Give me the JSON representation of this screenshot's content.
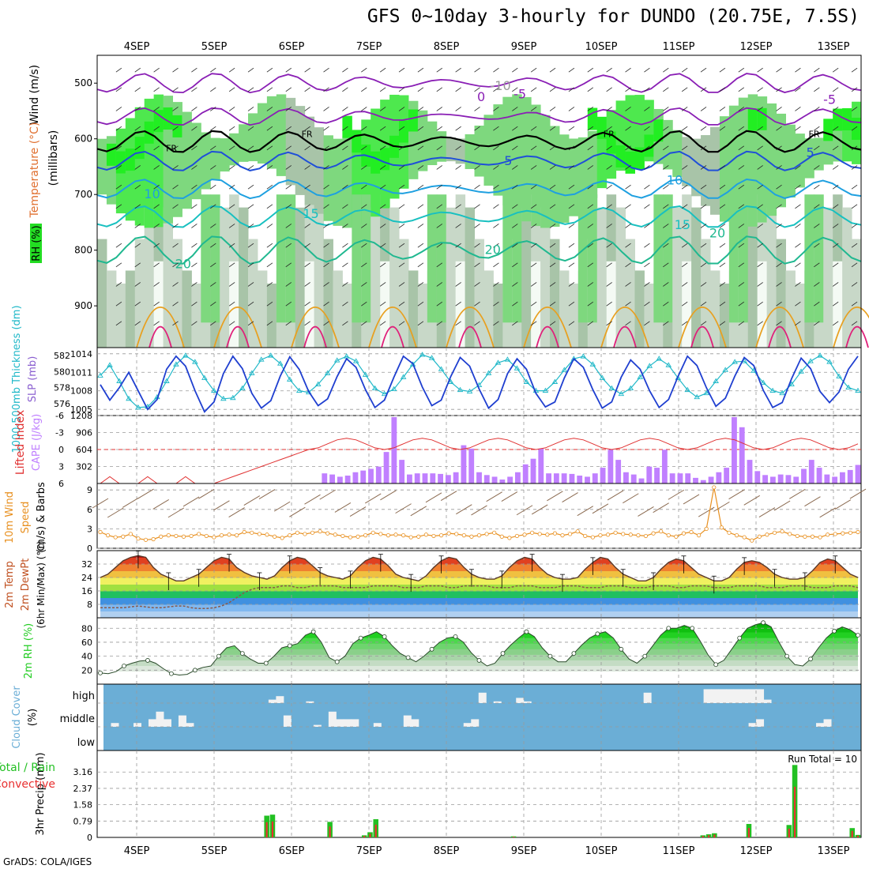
{
  "title": "GFS 0~10day 3-hourly for DUNDO (20.75E, 7.5S)",
  "footer": "GrADS: COLA/IGES",
  "days": [
    "4SEP",
    "5SEP",
    "6SEP",
    "7SEP",
    "8SEP",
    "9SEP",
    "10SEP",
    "11SEP",
    "12SEP",
    "13SEP"
  ],
  "colors": {
    "temp": "#e87020",
    "rh": "#22cc22",
    "cape": "#c080ff",
    "li": "#e03030",
    "wind": "#e89020",
    "slp": "#1f3fd0",
    "thk": "#20b8c8",
    "cloud": "#6baed6",
    "cloud_gap": "#ddd",
    "rain": "#22c022",
    "conv": "#e83030"
  },
  "chart_data": [
    {
      "id": "upper",
      "type": "heatmap",
      "title": "Temperature (°C) Wind (m/s) RH (%)",
      "ylabel": "(millibars)",
      "ylabel_rh": "RH (%)",
      "ylabel_wind": "Wind (m/s)",
      "ylabel_temp": "Temperature (°C)",
      "yticks": [
        500,
        600,
        700,
        800,
        900
      ],
      "ylim": [
        975,
        450
      ],
      "contour_labels": [
        {
          "text": "-5",
          "p": 520,
          "x": 4.95
        },
        {
          "text": "0",
          "p": 525,
          "x": 4.45
        },
        {
          "text": "-5",
          "p": 530,
          "x": 8.95
        },
        {
          "text": "FR",
          "p": 615,
          "x": 0.45
        },
        {
          "text": "FR",
          "p": 590,
          "x": 2.2
        },
        {
          "text": "FR",
          "p": 590,
          "x": 6.1
        },
        {
          "text": "FR",
          "p": 590,
          "x": 8.75
        },
        {
          "text": "5",
          "p": 640,
          "x": 4.8
        },
        {
          "text": "5",
          "p": 625,
          "x": 8.7
        },
        {
          "text": "-10",
          "p": 505,
          "x": 4.7
        },
        {
          "text": "10",
          "p": 700,
          "x": 0.2
        },
        {
          "text": "10",
          "p": 675,
          "x": 6.95
        },
        {
          "text": "15",
          "p": 735,
          "x": 2.25
        },
        {
          "text": "15",
          "p": 755,
          "x": 7.05
        },
        {
          "text": "20",
          "p": 825,
          "x": 0.6
        },
        {
          "text": "20",
          "p": 800,
          "x": 4.6
        },
        {
          "text": "20",
          "p": 770,
          "x": 7.5
        }
      ]
    },
    {
      "id": "slp",
      "type": "line",
      "ylabel": "SLP (mb)",
      "ylabel2": "1000-500mb Thickness (dm)",
      "yticks": [
        1005,
        1008,
        1011,
        1014
      ],
      "yticks2": [
        576,
        578,
        580,
        582
      ],
      "series": [
        {
          "name": "SLP",
          "values": [
            1009,
            1006.5,
            1008.5,
            1011,
            1008,
            1005,
            1006.6,
            1011.5,
            1013.6,
            1012,
            1008,
            1004.6,
            1006.2,
            1010.8,
            1013.6,
            1011.6,
            1007.6,
            1005.2,
            1006.4,
            1010.4,
            1013.5,
            1011.5,
            1007.9,
            1005.6,
            1006.7,
            1010.3,
            1013.2,
            1011.8,
            1008.2,
            1005.3,
            1006.5,
            1010.2,
            1013.6,
            1012.4,
            1008.6,
            1005.6,
            1006.5,
            1010.3,
            1013.4,
            1012.0,
            1008.3,
            1005.2,
            1006.6,
            1010.8,
            1013.2,
            1011.5,
            1007.6,
            1005.4,
            1006.2,
            1010.1,
            1013.2,
            1011.8,
            1008.2,
            1005.2,
            1006.2,
            1010.2,
            1013.0,
            1011.5,
            1008.0,
            1005.3,
            1006.6,
            1010.3,
            1013.6,
            1012.1,
            1008.5,
            1005.5,
            1006.8,
            1010.4,
            1013.4,
            1012.1,
            1008.1,
            1005.3,
            1006.1,
            1010.0,
            1013.3,
            1011.6,
            1007.9,
            1006.1,
            1007.8,
            1011.5,
            1013.6
          ]
        },
        {
          "name": "Thickness",
          "values": [
            579.5,
            580.8,
            578.8,
            576.6,
            575.5,
            575.6,
            576.8,
            578.8,
            580.9,
            582.0,
            581.2,
            579.2,
            577.6,
            576.6,
            576.7,
            577.9,
            579.8,
            581.5,
            582.0,
            581.0,
            579.0,
            577.6,
            577.4,
            578.4,
            579.8,
            581.4,
            581.9,
            581.3,
            579.6,
            577.9,
            577.2,
            577.8,
            579.3,
            580.9,
            582.1,
            581.7,
            580.3,
            578.7,
            577.7,
            577.5,
            578.3,
            579.8,
            581.1,
            581.5,
            580.4,
            578.7,
            577.6,
            577.6,
            578.7,
            580.2,
            581.6,
            581.9,
            580.9,
            579.2,
            577.9,
            577.2,
            577.9,
            579.3,
            580.7,
            581.6,
            580.8,
            579.2,
            577.7,
            576.8,
            577.3,
            578.8,
            580.2,
            581.2,
            581.3,
            580.1,
            578.6,
            577.6,
            577.3,
            578.4,
            580.0,
            581.3,
            582.0,
            581.2,
            579.4,
            578.0,
            577.6
          ]
        }
      ]
    },
    {
      "id": "cape",
      "type": "bar",
      "ylabel": "CAPE (J/kg)",
      "ylabel2": "Lifted Index",
      "yticks": [
        302,
        604,
        906,
        1208
      ],
      "yticks2": [
        6,
        3,
        0,
        -3,
        -6
      ],
      "cape": [
        0,
        0,
        0,
        0,
        0,
        0,
        0,
        0,
        0,
        0,
        0,
        0,
        0,
        0,
        0,
        0,
        0,
        0,
        0,
        0,
        0,
        0,
        0,
        0,
        0,
        0,
        0,
        0,
        0,
        180,
        160,
        120,
        140,
        200,
        230,
        260,
        300,
        560,
        1180,
        420,
        160,
        180,
        180,
        180,
        170,
        150,
        200,
        680,
        620,
        200,
        150,
        120,
        70,
        120,
        200,
        340,
        440,
        620,
        180,
        180,
        180,
        170,
        140,
        120,
        180,
        280,
        600,
        420,
        200,
        160,
        90,
        300,
        280,
        600,
        180,
        180,
        180,
        100,
        60,
        120,
        200,
        280,
        1180,
        1000,
        420,
        220,
        150,
        120,
        160,
        150,
        120,
        260,
        420,
        280,
        160,
        120,
        200,
        240,
        330
      ]
    },
    {
      "id": "wind",
      "type": "line",
      "ylabel": "10m Wind Speed (m/s) & Barbs",
      "yticks": [
        0,
        3,
        6,
        9
      ],
      "values": [
        2.5,
        2.0,
        1.7,
        1.8,
        2.2,
        1.5,
        1.3,
        1.4,
        1.8,
        2.0,
        1.9,
        1.8,
        1.9,
        2.2,
        1.9,
        1.7,
        2.0,
        2.1,
        2.0,
        2.5,
        2.4,
        2.2,
        2.1,
        1.8,
        1.6,
        2.0,
        2.4,
        2.2,
        2.4,
        2.6,
        2.3,
        2.1,
        1.9,
        1.7,
        1.8,
        2.0,
        2.4,
        2.2,
        2.0,
        2.1,
        2.0,
        1.7,
        1.8,
        2.1,
        1.9,
        2.0,
        2.3,
        2.2,
        2.0,
        1.8,
        2.0,
        2.2,
        2.4,
        1.8,
        1.6,
        1.9,
        2.1,
        2.4,
        2.2,
        2.1,
        2.3,
        2.0,
        2.2,
        2.6,
        1.9,
        1.7,
        2.0,
        2.1,
        2.4,
        2.2,
        2.1,
        2.0,
        1.9,
        2.3,
        2.6,
        2.0,
        1.8,
        2.3,
        2.5,
        2.0,
        3.0,
        9.4,
        3.2,
        2.4,
        2.0,
        1.7,
        1.2,
        1.8,
        2.1,
        2.4,
        2.6,
        2.2,
        1.9,
        1.8,
        1.8,
        1.7,
        2.1,
        2.2,
        2.3,
        2.4,
        2.5
      ]
    },
    {
      "id": "temp2m",
      "type": "area",
      "ylabel": "2m Temp / 2m DewPt (6hr Min/Max) (°C)",
      "yticks": [
        8,
        16,
        24,
        32
      ],
      "ylim": [
        0,
        40
      ],
      "temp": [
        24,
        26,
        30,
        34,
        36,
        37,
        36,
        30,
        26,
        24,
        22,
        22,
        24,
        26,
        30,
        34,
        36,
        35,
        30,
        27,
        25,
        24,
        23,
        25,
        30,
        34,
        36,
        35,
        31,
        27,
        25,
        24,
        23,
        25,
        30,
        34,
        36,
        35,
        31,
        26,
        24,
        23,
        22,
        25,
        30,
        34,
        36,
        35,
        30,
        26,
        24,
        23,
        23,
        25,
        30,
        34,
        36,
        35,
        30,
        26,
        24,
        23,
        23,
        24,
        29,
        33,
        36,
        35,
        30,
        26,
        24,
        22,
        22,
        24,
        29,
        33,
        35,
        34,
        30,
        26,
        24,
        22,
        22,
        24,
        29,
        33,
        34,
        33,
        30,
        26,
        24,
        23,
        23,
        24,
        28,
        33,
        35,
        34,
        30,
        26,
        24
      ],
      "dewpt": [
        6,
        6,
        6,
        6,
        6.5,
        7,
        6.5,
        6,
        6,
        6.5,
        7,
        7,
        6,
        5.5,
        5.5,
        6,
        7,
        9,
        12,
        15,
        17,
        18,
        18,
        18,
        19,
        19,
        18,
        18,
        19,
        19,
        19,
        19,
        18,
        18,
        18,
        18,
        19,
        19,
        19,
        19,
        18,
        18,
        18,
        19,
        19,
        19,
        18,
        18,
        19,
        19,
        19,
        19,
        18,
        18,
        18,
        19,
        19,
        19,
        18,
        18,
        18,
        19,
        19,
        19,
        18,
        18,
        18,
        19,
        19,
        19,
        18,
        18,
        18,
        19,
        19,
        19,
        18,
        18,
        19,
        19,
        19,
        18,
        18,
        18,
        19,
        19,
        19,
        19,
        18,
        18,
        18,
        19,
        19,
        19,
        18,
        18,
        18,
        19,
        19,
        19,
        18
      ]
    },
    {
      "id": "rh2m",
      "type": "area",
      "ylabel": "2m RH (%)",
      "yticks": [
        20,
        40,
        60,
        80
      ],
      "ylim": [
        0,
        95
      ],
      "values": [
        16,
        15,
        18,
        26,
        30,
        33,
        34,
        30,
        22,
        15,
        13,
        14,
        20,
        24,
        26,
        40,
        52,
        55,
        44,
        36,
        30,
        30,
        40,
        52,
        55,
        58,
        70,
        75,
        60,
        38,
        32,
        40,
        58,
        66,
        70,
        75,
        68,
        55,
        44,
        38,
        32,
        40,
        50,
        60,
        66,
        68,
        60,
        45,
        34,
        26,
        30,
        44,
        56,
        66,
        75,
        68,
        52,
        40,
        32,
        32,
        44,
        56,
        66,
        72,
        75,
        66,
        50,
        36,
        30,
        40,
        55,
        70,
        80,
        80,
        84,
        80,
        62,
        42,
        28,
        34,
        50,
        66,
        80,
        85,
        88,
        82,
        60,
        40,
        28,
        26,
        36,
        52,
        66,
        76,
        82,
        78,
        70
      ]
    },
    {
      "id": "cloud",
      "type": "bar",
      "ylabel": "Cloud Cover (%)",
      "layers": [
        "high",
        "middle",
        "low"
      ],
      "high": [
        0,
        0,
        0,
        0,
        0,
        0,
        0,
        0,
        0,
        0,
        0,
        0,
        0,
        0,
        0,
        0,
        0,
        0,
        0,
        0,
        0,
        0,
        20,
        40,
        0,
        0,
        0,
        10,
        0,
        0,
        0,
        0,
        0,
        0,
        0,
        0,
        0,
        0,
        0,
        0,
        0,
        0,
        0,
        0,
        0,
        0,
        0,
        0,
        0,
        0,
        60,
        0,
        10,
        0,
        0,
        30,
        10,
        0,
        0,
        0,
        0,
        0,
        0,
        0,
        0,
        0,
        0,
        0,
        0,
        0,
        0,
        0,
        60,
        0,
        0,
        0,
        0,
        0,
        0,
        0,
        80,
        80,
        80,
        80,
        80,
        80,
        80,
        80,
        20,
        0,
        0,
        0,
        0,
        0,
        0,
        0,
        0,
        0,
        0,
        0,
        0
      ],
      "middle": [
        0,
        20,
        0,
        0,
        20,
        0,
        40,
        80,
        40,
        0,
        60,
        20,
        0,
        0,
        0,
        0,
        0,
        0,
        0,
        0,
        0,
        0,
        0,
        0,
        60,
        0,
        0,
        0,
        10,
        0,
        80,
        40,
        40,
        40,
        0,
        0,
        20,
        0,
        0,
        0,
        60,
        40,
        0,
        0,
        0,
        0,
        0,
        0,
        20,
        40,
        0,
        0,
        0,
        0,
        0,
        0,
        0,
        0,
        0,
        0,
        0,
        0,
        0,
        0,
        0,
        0,
        0,
        0,
        0,
        0,
        0,
        0,
        0,
        0,
        0,
        0,
        0,
        0,
        0,
        0,
        0,
        0,
        0,
        0,
        0,
        0,
        20,
        40,
        0,
        0,
        0,
        0,
        0,
        0,
        0,
        20,
        40,
        0,
        0,
        0,
        0
      ],
      "low": [
        0,
        0,
        0,
        0,
        0,
        0,
        0,
        0,
        0,
        0,
        0,
        0,
        0,
        0,
        0,
        0,
        0,
        0,
        0,
        0,
        0,
        0,
        0,
        0,
        0,
        0,
        0,
        0,
        0,
        0,
        0,
        0,
        0,
        0,
        0,
        0,
        0,
        0,
        0,
        0,
        0,
        0,
        0,
        0,
        0,
        0,
        0,
        0,
        0,
        0,
        0,
        0,
        0,
        0,
        0,
        0,
        0,
        0,
        0,
        0,
        0,
        0,
        0,
        0,
        0,
        0,
        0,
        0,
        0,
        0,
        0,
        0,
        0,
        0,
        0,
        0,
        0,
        0,
        0,
        0,
        0,
        0,
        0,
        0,
        0,
        0,
        0,
        0,
        0,
        0,
        0,
        0,
        0,
        0,
        0,
        0,
        0,
        0,
        0,
        0,
        0
      ]
    },
    {
      "id": "precip",
      "type": "bar",
      "ylabel": "3hr Precip (mm)",
      "ylabel2": "Total / Rain Convective",
      "yticks": [
        0,
        0.79,
        1.58,
        2.37,
        3.16
      ],
      "run_total": "Run Total = 10",
      "values": [
        0,
        0,
        0,
        0,
        0,
        0,
        0,
        0,
        0,
        0,
        0,
        0,
        0,
        0,
        0,
        0,
        0,
        0,
        0,
        0,
        0,
        0,
        0,
        0,
        0,
        0,
        0,
        0,
        0,
        1.05,
        1.1,
        0,
        0,
        0,
        0,
        0,
        0,
        0,
        0,
        0,
        0.75,
        0,
        0,
        0,
        0,
        0,
        0.1,
        0.25,
        0.88,
        0,
        0,
        0,
        0,
        0,
        0,
        0,
        0,
        0,
        0,
        0,
        0,
        0,
        0,
        0,
        0,
        0,
        0,
        0,
        0,
        0,
        0,
        0,
        0.05,
        0,
        0,
        0,
        0,
        0,
        0,
        0,
        0,
        0,
        0,
        0,
        0,
        0,
        0,
        0,
        0,
        0,
        0,
        0,
        0,
        0,
        0,
        0,
        0,
        0,
        0,
        0,
        0,
        0,
        0,
        0,
        0,
        0.1,
        0.15,
        0.2,
        0,
        0,
        0,
        0,
        0,
        0.65,
        0,
        0,
        0,
        0,
        0,
        0,
        0.6,
        3.5,
        0,
        0,
        0,
        0,
        0,
        0,
        0,
        0,
        0,
        0.45,
        0.12
      ]
    }
  ]
}
